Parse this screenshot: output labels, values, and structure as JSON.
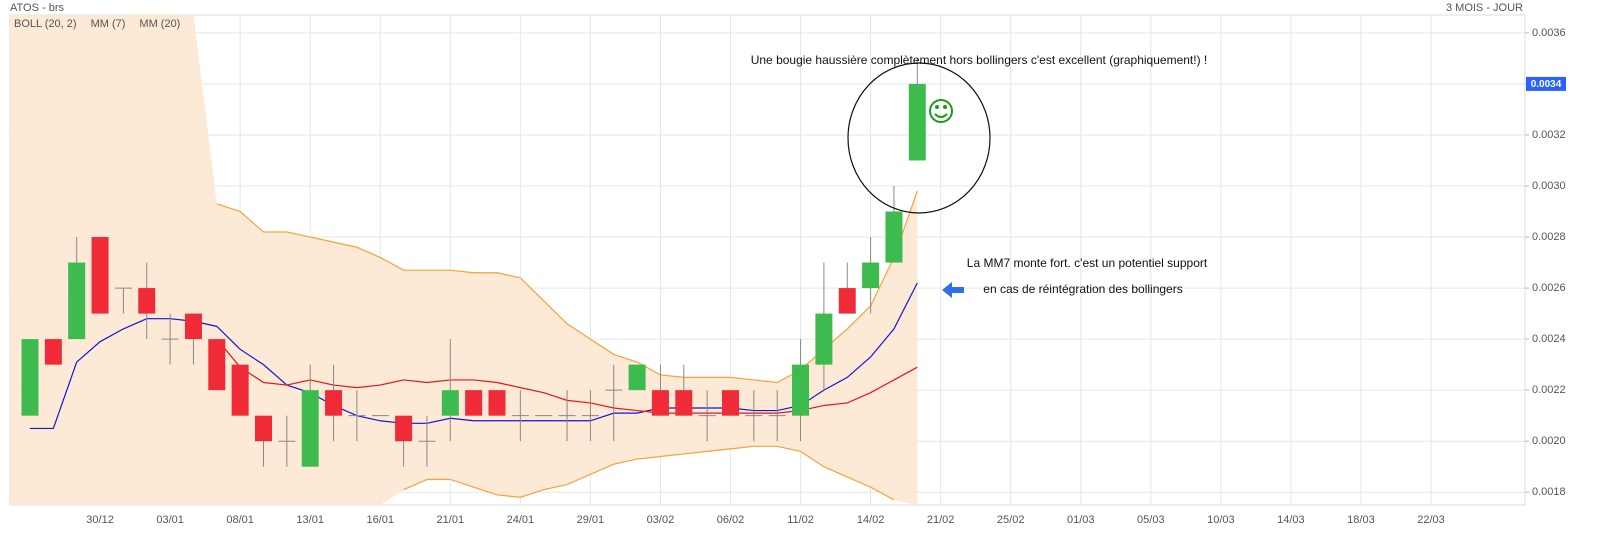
{
  "chart_data": {
    "type": "candlestick",
    "title": "ATOS - brs",
    "period": "3 MOIS - JOUR",
    "up_color": "#3dbb4e",
    "down_color": "#ee2b37",
    "categories": [
      null,
      null,
      null,
      "30/12",
      null,
      null,
      "03/01",
      null,
      null,
      "08/01",
      null,
      null,
      "13/01",
      null,
      null,
      "16/01",
      null,
      null,
      "21/01",
      null,
      null,
      "24/01",
      null,
      null,
      "29/01",
      null,
      null,
      "03/02",
      null,
      null,
      "06/02",
      null,
      null,
      "11/02",
      null,
      null,
      "14/02",
      null,
      null,
      "21/02",
      null,
      null,
      "25/02",
      null,
      null,
      "01/03",
      null,
      null,
      "05/03",
      null,
      null,
      "10/03",
      null,
      null,
      "14/03",
      null,
      null,
      "18/03",
      null,
      null,
      "22/03",
      null,
      null,
      null
    ],
    "open": [
      0.0021,
      0.0024,
      0.0024,
      0.0028,
      0.0026,
      0.0026,
      0.0024,
      0.0025,
      0.0024,
      0.0023,
      0.0021,
      0.002,
      0.0019,
      0.0022,
      0.0021,
      0.0021,
      0.0021,
      0.002,
      0.0021,
      0.0022,
      0.0022,
      0.0021,
      0.0021,
      0.0021,
      0.0021,
      0.0022,
      0.0022,
      0.0022,
      0.0022,
      0.0021,
      0.0022,
      0.0021,
      0.0021,
      0.0021,
      0.0023,
      0.0026,
      0.0026,
      0.0027,
      0.0031,
      null,
      null,
      null,
      null,
      null,
      null,
      null,
      null,
      null,
      null,
      null,
      null,
      null,
      null,
      null,
      null,
      null,
      null,
      null,
      null,
      null,
      null,
      null,
      null,
      null
    ],
    "high": [
      0.0024,
      0.0024,
      0.0028,
      0.0028,
      0.0026,
      0.0027,
      0.0025,
      0.0025,
      0.0024,
      0.0023,
      0.0021,
      0.0021,
      0.0023,
      0.0023,
      0.0022,
      0.0021,
      0.0021,
      0.0021,
      0.0024,
      0.0022,
      0.0022,
      0.0022,
      0.0021,
      0.0022,
      0.0022,
      0.0023,
      0.0023,
      0.0023,
      0.0023,
      0.0022,
      0.0022,
      0.0022,
      0.0022,
      0.0024,
      0.0027,
      0.0027,
      0.0028,
      0.003,
      0.0035,
      null,
      null,
      null,
      null,
      null,
      null,
      null,
      null,
      null,
      null,
      null,
      null,
      null,
      null,
      null,
      null,
      null,
      null,
      null,
      null,
      null,
      null,
      null,
      null,
      null
    ],
    "low": [
      0.0021,
      0.0023,
      0.0024,
      0.0025,
      0.0025,
      0.0024,
      0.0023,
      0.0023,
      0.0022,
      0.0021,
      0.0019,
      0.0019,
      0.0019,
      0.002,
      0.002,
      0.0021,
      0.0019,
      0.0019,
      0.002,
      0.0021,
      0.0021,
      0.002,
      0.0021,
      0.002,
      0.002,
      0.002,
      0.0022,
      0.0021,
      0.0021,
      0.002,
      0.0021,
      0.002,
      0.002,
      0.002,
      0.0022,
      0.0025,
      0.0025,
      0.0027,
      0.0031,
      null,
      null,
      null,
      null,
      null,
      null,
      null,
      null,
      null,
      null,
      null,
      null,
      null,
      null,
      null,
      null,
      null,
      null,
      null,
      null,
      null,
      null,
      null,
      null,
      null
    ],
    "close": [
      0.0024,
      0.0023,
      0.0027,
      0.0025,
      0.0026,
      0.0025,
      0.0024,
      0.0024,
      0.0022,
      0.0021,
      0.002,
      0.002,
      0.0022,
      0.0021,
      0.0021,
      0.0021,
      0.002,
      0.002,
      0.0022,
      0.0021,
      0.0021,
      0.0021,
      0.0021,
      0.0021,
      0.0021,
      0.0022,
      0.0023,
      0.0021,
      0.0021,
      0.0021,
      0.0021,
      0.0021,
      0.0021,
      0.0023,
      0.0025,
      0.0025,
      0.0027,
      0.0029,
      0.0034,
      null,
      null,
      null,
      null,
      null,
      null,
      null,
      null,
      null,
      null,
      null,
      null,
      null,
      null,
      null,
      null,
      null,
      null,
      null,
      null,
      null,
      null,
      null,
      null,
      null
    ],
    "bollinger": {
      "name": "BOLL (20, 2)",
      "color": "#f6a13a",
      "fill": "#fde8d2",
      "upper": [
        null,
        null,
        null,
        null,
        null,
        null,
        null,
        null,
        0.00293,
        0.0029,
        0.00282,
        0.00282,
        0.0028,
        0.00278,
        0.00276,
        0.00272,
        0.00267,
        0.00267,
        0.00267,
        0.00266,
        0.00266,
        0.00264,
        0.00255,
        0.00246,
        0.0024,
        0.00234,
        0.00231,
        0.00226,
        0.00225,
        0.00225,
        0.00225,
        0.00224,
        0.00223,
        0.00228,
        0.00236,
        0.00244,
        0.00253,
        0.00272,
        0.00298,
        null,
        null,
        null,
        null,
        null,
        null,
        null,
        null,
        null,
        null,
        null,
        null,
        null,
        null,
        null,
        null,
        null,
        null,
        null,
        null,
        null,
        null,
        null,
        null,
        null
      ],
      "lower": [
        null,
        null,
        null,
        null,
        null,
        null,
        null,
        null,
        null,
        null,
        null,
        null,
        null,
        null,
        null,
        null,
        0.00181,
        0.00185,
        0.00185,
        0.00182,
        0.00179,
        0.00178,
        0.00181,
        0.00183,
        0.00187,
        0.00191,
        0.00193,
        0.00194,
        0.00195,
        0.00196,
        0.00197,
        0.00198,
        0.00198,
        0.00196,
        0.0019,
        0.00186,
        0.00182,
        0.00177,
        null,
        null,
        null,
        null,
        null,
        null,
        null,
        null,
        null,
        null,
        null,
        null,
        null,
        null,
        null,
        null,
        null,
        null,
        null,
        null,
        null,
        null,
        null,
        null,
        null,
        null
      ]
    },
    "series": [
      {
        "name": "MM (7)",
        "color": "#1414d8",
        "values": [
          0.00205,
          0.00205,
          0.00231,
          0.00239,
          0.00244,
          0.00248,
          0.00248,
          0.00247,
          0.00245,
          0.00236,
          0.0023,
          0.00222,
          0.00219,
          0.00214,
          0.0021,
          0.00208,
          0.00207,
          0.00207,
          0.00209,
          0.00208,
          0.00208,
          0.00208,
          0.00208,
          0.00208,
          0.00208,
          0.00211,
          0.00211,
          0.00213,
          0.00213,
          0.00213,
          0.00213,
          0.00212,
          0.00212,
          0.00214,
          0.0022,
          0.00225,
          0.00233,
          0.00244,
          0.00262,
          null,
          null,
          null,
          null,
          null,
          null,
          null,
          null,
          null,
          null,
          null,
          null,
          null,
          null,
          null,
          null,
          null,
          null,
          null,
          null,
          null,
          null,
          null,
          null,
          null
        ]
      },
      {
        "name": "MM (20)",
        "color": "#e01818",
        "values": [
          null,
          null,
          null,
          null,
          null,
          null,
          null,
          null,
          0.0024,
          0.00229,
          0.00223,
          0.00222,
          0.00224,
          0.00222,
          0.00221,
          0.00222,
          0.00224,
          0.00223,
          0.00224,
          0.00224,
          0.00223,
          0.00221,
          0.00219,
          0.00216,
          0.00215,
          0.00213,
          0.00212,
          0.00211,
          0.00211,
          0.00211,
          0.00211,
          0.00211,
          0.00211,
          0.00212,
          0.00214,
          0.00215,
          0.00219,
          0.00224,
          0.00229,
          null,
          null,
          null,
          null,
          null,
          null,
          null,
          null,
          null,
          null,
          null,
          null,
          null,
          null,
          null,
          null,
          null,
          null,
          null,
          null,
          null,
          null,
          null,
          null,
          null
        ]
      }
    ],
    "ylim": [
      0.00175,
      0.00367
    ],
    "yticks": [
      0.0018,
      {
        "value": 0.002,
        "label": "0.0020"
      },
      0.0022,
      0.0024,
      0.0026,
      0.0028,
      {
        "value": 0.003,
        "label": "0.0030"
      },
      0.0032,
      0.0034,
      0.0036
    ],
    "grid": true,
    "last_price": 0.0034,
    "annotations": [
      "Une bougie haussière complètement hors bollingers c'est excellent (graphiquement!) !",
      "La MM7 monte fort. c'est un potentiel support",
      "en cas de réintégration des bollingers"
    ]
  }
}
